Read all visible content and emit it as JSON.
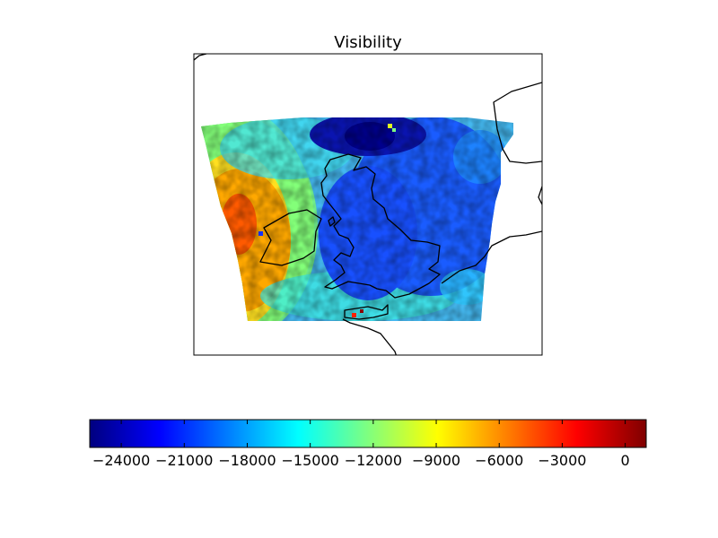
{
  "title": "Visibility",
  "colormap": {
    "name": "jet",
    "stops": [
      "#00007f",
      "#0000ff",
      "#007fff",
      "#00ffff",
      "#7fff7f",
      "#ffff00",
      "#ff7f00",
      "#ff0000",
      "#7f0000"
    ]
  },
  "colorbar": {
    "min": -25500,
    "max": 1000,
    "ticks": [
      -24000,
      -21000,
      -18000,
      -15000,
      -12000,
      -9000,
      -6000,
      -3000,
      0
    ],
    "tick_labels": [
      "−24000",
      "−21000",
      "−18000",
      "−15000",
      "−12000",
      "−9000",
      "−6000",
      "−3000",
      "0"
    ]
  },
  "coastline_color": "#000000"
}
